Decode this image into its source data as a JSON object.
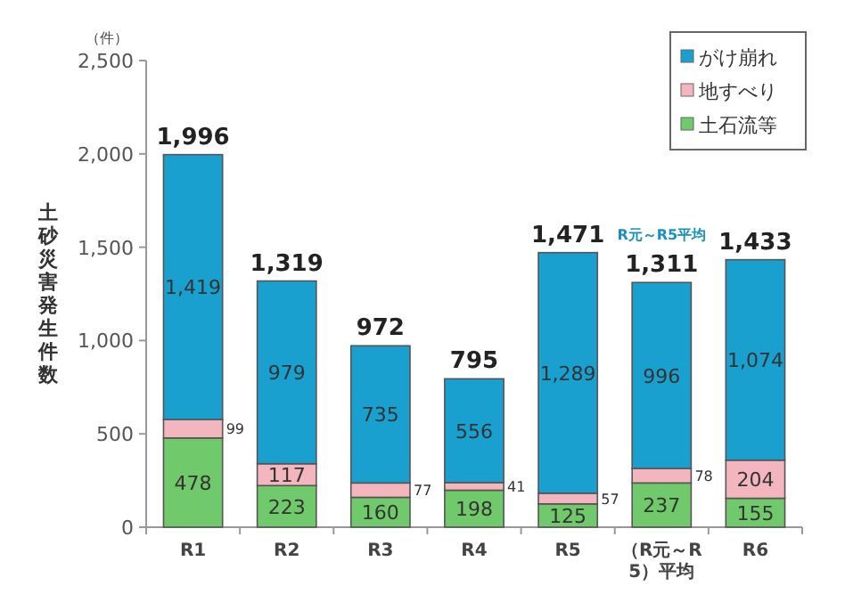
{
  "chart_data": {
    "type": "bar",
    "stacked": true,
    "ylabel": "土砂災害発生件数",
    "categories": [
      "R1",
      "R2",
      "R3",
      "R4",
      "R5",
      "（R元～R5）平均",
      "R6"
    ],
    "series": [
      {
        "name": "土石流等",
        "color": "#70c96a",
        "values": [
          478,
          223,
          160,
          198,
          125,
          237,
          155
        ]
      },
      {
        "name": "地すべり",
        "color": "#f4b6be",
        "values": [
          99,
          117,
          77,
          41,
          57,
          78,
          204
        ]
      },
      {
        "name": "がけ崩れ",
        "color": "#1aa0cf",
        "values": [
          1419,
          979,
          735,
          556,
          1289,
          996,
          1074
        ],
        "value_labels": [
          "1,419",
          "979",
          "735",
          "556",
          "1,289",
          "996",
          "1,074"
        ]
      }
    ],
    "ylim": [
      0,
      2500
    ],
    "yticks": [
      {
        "value": 0,
        "label": "0"
      },
      {
        "value": 500,
        "label": "500"
      },
      {
        "value": 1000,
        "label": "1,000"
      },
      {
        "value": 1500,
        "label": "1,500"
      },
      {
        "value": 2000,
        "label": "2,000"
      },
      {
        "value": 2500,
        "label": "2,500"
      }
    ],
    "data_labels": true,
    "totals": [
      "1,996",
      "1,319",
      "972",
      "795",
      "1,471",
      "1,311",
      "1,433"
    ],
    "legend": "top right",
    "annotations": [
      "（件）",
      {
        "text": "R元～R5平均",
        "x": "（R元～R5）平均",
        "y": 1311
      }
    ]
  }
}
